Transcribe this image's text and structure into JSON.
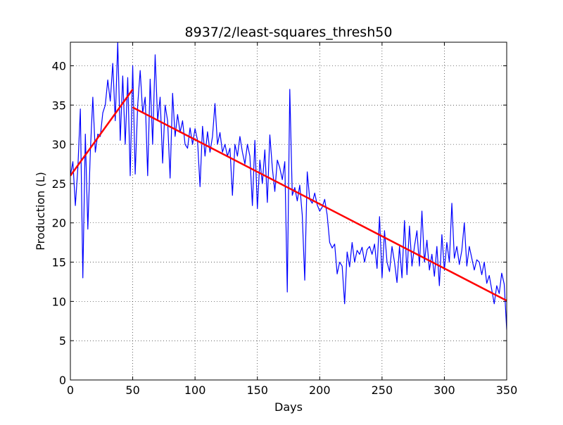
{
  "chart_data": {
    "type": "line",
    "title": "8937/2/least-squares_thresh50",
    "xlabel": "Days",
    "ylabel": "Production (L)",
    "xlim": [
      0,
      350
    ],
    "ylim": [
      0,
      43
    ],
    "xticks": [
      0,
      50,
      100,
      150,
      200,
      250,
      300,
      350
    ],
    "yticks": [
      0,
      5,
      10,
      15,
      20,
      25,
      30,
      35,
      40
    ],
    "grid": true,
    "series": [
      {
        "color": "#0000ff",
        "width": 1.2,
        "x": [
          0,
          2,
          4,
          6,
          8,
          10,
          12,
          14,
          16,
          18,
          20,
          22,
          24,
          26,
          28,
          30,
          32,
          34,
          36,
          38,
          40,
          42,
          44,
          46,
          48,
          50,
          52,
          54,
          56,
          58,
          60,
          62,
          64,
          66,
          68,
          70,
          72,
          74,
          76,
          78,
          80,
          82,
          84,
          86,
          88,
          90,
          92,
          94,
          96,
          98,
          100,
          102,
          104,
          106,
          108,
          110,
          112,
          114,
          116,
          118,
          120,
          122,
          124,
          126,
          128,
          130,
          132,
          134,
          136,
          138,
          140,
          142,
          144,
          146,
          148,
          150,
          152,
          154,
          156,
          158,
          160,
          162,
          164,
          166,
          168,
          170,
          172,
          174,
          176,
          178,
          180,
          182,
          184,
          186,
          188,
          190,
          192,
          194,
          196,
          198,
          200,
          202,
          204,
          206,
          208,
          210,
          212,
          214,
          216,
          218,
          220,
          222,
          224,
          226,
          228,
          230,
          232,
          234,
          236,
          238,
          240,
          242,
          244,
          246,
          248,
          250,
          252,
          254,
          256,
          258,
          260,
          262,
          264,
          266,
          268,
          270,
          272,
          274,
          276,
          278,
          280,
          282,
          284,
          286,
          288,
          290,
          292,
          294,
          296,
          298,
          300,
          302,
          304,
          306,
          308,
          310,
          312,
          314,
          316,
          318,
          320,
          322,
          324,
          326,
          328,
          330,
          332,
          334,
          336,
          338,
          340,
          342,
          344,
          346,
          348,
          350
        ],
        "values": [
          26,
          27.8,
          22.2,
          27,
          34.5,
          13,
          31.3,
          19.2,
          29,
          36,
          29,
          31.3,
          31,
          34,
          35,
          38.2,
          35.5,
          40.3,
          33,
          43,
          30.5,
          38.7,
          30,
          38.5,
          26,
          40,
          26.2,
          35,
          39.4,
          34,
          36,
          26,
          38.3,
          30,
          41.4,
          33,
          36,
          27.6,
          35,
          33,
          25.7,
          36.5,
          31,
          33.8,
          31.5,
          33,
          30,
          29.5,
          32.1,
          30,
          32,
          30.5,
          24.6,
          32.3,
          28.5,
          31.6,
          29,
          31,
          35.2,
          30,
          31.5,
          29,
          30,
          28.5,
          29.5,
          23.5,
          30,
          28.5,
          31,
          29,
          27.5,
          30,
          28.5,
          22.2,
          30.5,
          21.8,
          28,
          25,
          29.3,
          22.6,
          31.2,
          27,
          24,
          28,
          27,
          25.5,
          27.8,
          11.2,
          37,
          23.5,
          24.5,
          22.8,
          24.8,
          21,
          12.7,
          26.5,
          23,
          22.5,
          23.8,
          22.3,
          21.5,
          22,
          23,
          21,
          17.5,
          16.8,
          17.3,
          13.5,
          15,
          14.5,
          9.7,
          16.3,
          14.4,
          17.5,
          15,
          16.5,
          16,
          16.9,
          15,
          16.6,
          17,
          16,
          17.3,
          14.2,
          20.8,
          13,
          19,
          15,
          13.8,
          17,
          15,
          12.4,
          17,
          13,
          20.3,
          13.4,
          19.6,
          14.5,
          17,
          19,
          14.5,
          21.5,
          15,
          17.8,
          14,
          16,
          13.2,
          17,
          12,
          18.5,
          14,
          17.5,
          15,
          22.5,
          15.5,
          17,
          14.7,
          16.5,
          20,
          14.5,
          17,
          15.5,
          14,
          15.3,
          15,
          13.4,
          15,
          12.3,
          13.3,
          11.5,
          9.7,
          12,
          11,
          13.6,
          12.2,
          6.4
        ]
      },
      {
        "color": "#ff0000",
        "width": 2.5,
        "x": [
          0,
          50
        ],
        "values": [
          26,
          37
        ]
      },
      {
        "color": "#ff0000",
        "width": 2.5,
        "x": [
          50,
          350
        ],
        "values": [
          34.7,
          10.1
        ]
      }
    ]
  }
}
